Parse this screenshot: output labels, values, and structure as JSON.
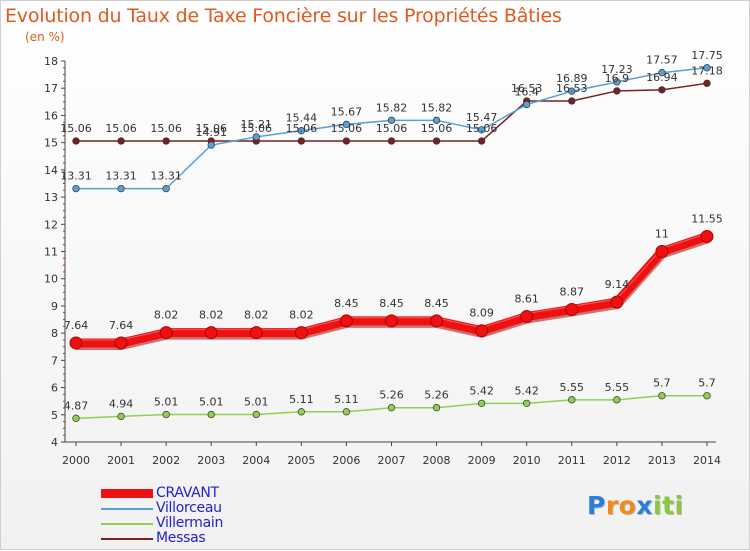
{
  "header": {
    "title": "Evolution du Taux de Taxe Foncière sur les Propriétés Bâties",
    "subtitle": "(en %)"
  },
  "chart_data": {
    "type": "line",
    "x": [
      "2000",
      "2001",
      "2002",
      "2003",
      "2004",
      "2005",
      "2006",
      "2007",
      "2008",
      "2009",
      "2010",
      "2011",
      "2012",
      "2013",
      "2014"
    ],
    "ylim": [
      4,
      18
    ],
    "yticks": [
      4,
      5,
      6,
      7,
      8,
      9,
      10,
      11,
      12,
      13,
      14,
      15,
      16,
      17,
      18
    ],
    "grid": false,
    "legend_position": "bottom-left",
    "series": [
      {
        "name": "Messas",
        "color": "#7b1e24",
        "values": [
          15.06,
          15.06,
          15.06,
          15.06,
          15.06,
          15.06,
          15.06,
          15.06,
          15.06,
          15.06,
          16.53,
          16.53,
          16.9,
          16.94,
          17.18
        ],
        "labels": [
          "15.06",
          "15.06",
          "15.06",
          "15.06",
          "15.06",
          "15.06",
          "15.06",
          "15.06",
          "15.06",
          "15.06",
          "16.53",
          "16.53",
          "16.9",
          "16.94",
          "17.18"
        ]
      },
      {
        "name": "Villorceau",
        "color": "#5aa0d6",
        "values": [
          13.31,
          13.31,
          13.31,
          14.91,
          15.21,
          15.44,
          15.67,
          15.82,
          15.82,
          15.47,
          16.4,
          16.89,
          17.23,
          17.57,
          17.75
        ],
        "labels": [
          "13.31",
          "13.31",
          "13.31",
          "14.91",
          "15.21",
          "15.44",
          "15.67",
          "15.82",
          "15.82",
          "15.47",
          "16.4",
          "16.89",
          "17.23",
          "17.57",
          "17.75"
        ]
      },
      {
        "name": "Villermain",
        "color": "#8fd14f",
        "values": [
          4.87,
          4.94,
          5.01,
          5.01,
          5.01,
          5.11,
          5.11,
          5.26,
          5.26,
          5.42,
          5.42,
          5.55,
          5.55,
          5.7,
          5.7
        ],
        "labels": [
          "4.87",
          "4.94",
          "5.01",
          "5.01",
          "5.01",
          "5.11",
          "5.11",
          "5.26",
          "5.26",
          "5.42",
          "5.42",
          "5.55",
          "5.55",
          "5.7",
          "5.7"
        ]
      },
      {
        "name": "CRAVANT",
        "color": "#ee1111",
        "values": [
          7.64,
          7.64,
          8.02,
          8.02,
          8.02,
          8.02,
          8.45,
          8.45,
          8.45,
          8.09,
          8.61,
          8.87,
          9.14,
          11,
          11.55
        ],
        "labels": [
          "7.64",
          "7.64",
          "8.02",
          "8.02",
          "8.02",
          "8.02",
          "8.45",
          "8.45",
          "8.45",
          "8.09",
          "8.61",
          "8.87",
          "9.14",
          "11",
          "11.55"
        ]
      }
    ]
  },
  "legend": {
    "items": [
      {
        "label": "CRAVANT",
        "color": "#ee1111",
        "weight": 9
      },
      {
        "label": "Villorceau",
        "color": "#5aa0d6",
        "weight": 2
      },
      {
        "label": "Villermain",
        "color": "#8fd14f",
        "weight": 2
      },
      {
        "label": "Messas",
        "color": "#7b1e24",
        "weight": 2
      }
    ]
  },
  "logo": {
    "letters": [
      "P",
      "r",
      "o",
      "x",
      "i",
      "t",
      "i"
    ],
    "colors": [
      "#2a7fd4",
      "#f08a1c",
      "#f08a1c",
      "#2a7fd4",
      "#8cc63f",
      "#8cc63f",
      "#8cc63f"
    ]
  }
}
